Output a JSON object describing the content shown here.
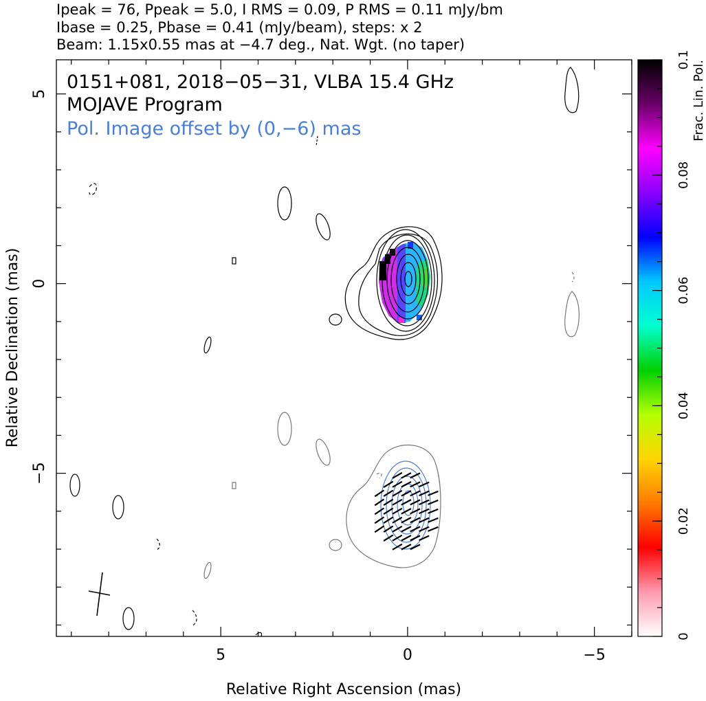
{
  "header": {
    "line1": "Ipeak = 76, Ppeak = 5.0, I RMS = 0.09, P RMS = 0.11 mJy/bm",
    "line2": "Ibase = 0.25, Pbase = 0.41 (mJy/beam), steps: x 2",
    "line3": "Beam: 1.15x0.55 mas at −4.7 deg., Nat. Wgt. (no taper)"
  },
  "plot": {
    "title": "0151+081, 2018−05−31, VLBA 15.4 GHz",
    "subtitle": "MOJAVE Program",
    "pol_note": "Pol. Image offset by (0,−6) mas",
    "pol_note_color": "#4a7fd6"
  },
  "chart_data": {
    "type": "contour",
    "xlabel": "Relative Right Ascension (mas)",
    "ylabel": "Relative Declination (mas)",
    "xlim": [
      9.4,
      -6.0
    ],
    "ylim": [
      -9.3,
      5.9
    ],
    "x_ticks": [
      5,
      0,
      -5
    ],
    "x_tick_labels": [
      "5",
      "0",
      "−5"
    ],
    "y_ticks": [
      5,
      0,
      -5
    ],
    "y_tick_labels": [
      "5",
      "0",
      "−5"
    ],
    "total_intensity": {
      "peak_mJy_per_beam": 76,
      "base_contour_mJy_per_beam": 0.25,
      "contour_step_factor": 2,
      "core_position_mas": [
        0,
        0
      ],
      "contour_levels_mJy_per_beam": [
        0.25,
        0.5,
        1,
        2,
        4,
        8,
        16,
        32,
        64
      ]
    },
    "polarization": {
      "peak_mJy_per_beam": 5.0,
      "base_contour_mJy_per_beam": 0.41,
      "offset_mas": [
        0,
        -6
      ],
      "contour_color": "#4a7fd6"
    },
    "beam": {
      "major_mas": 1.15,
      "minor_mas": 0.55,
      "pa_deg": -4.7,
      "position_mas": [
        8.3,
        -8.3
      ]
    },
    "colorbar": {
      "label": "Frac. Lin. Pol.",
      "min": 0,
      "max": 0.1,
      "ticks": [
        0,
        0.02,
        0.04,
        0.06,
        0.08,
        0.1
      ],
      "tick_labels": [
        "0",
        "0.02",
        "0.04",
        "0.06",
        "0.08",
        "0.1"
      ],
      "stops": [
        "#ffffff",
        "#ff9ab0",
        "#ff0000",
        "#ff7a00",
        "#ffd500",
        "#b4ff00",
        "#00d000",
        "#00ffd0",
        "#00c8ff",
        "#0000ff",
        "#8a00ff",
        "#ff00ff",
        "#6a0068",
        "#000000"
      ]
    }
  }
}
